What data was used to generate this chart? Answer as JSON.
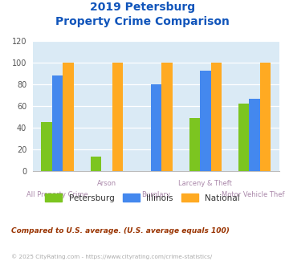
{
  "title_line1": "2019 Petersburg",
  "title_line2": "Property Crime Comparison",
  "categories": [
    "All Property Crime",
    "Arson",
    "Burglary",
    "Larceny & Theft",
    "Motor Vehicle Theft"
  ],
  "petersburg": [
    45,
    13,
    0,
    49,
    62
  ],
  "illinois": [
    88,
    0,
    80,
    93,
    67
  ],
  "national": [
    100,
    100,
    100,
    100,
    100
  ],
  "color_petersburg": "#7cc520",
  "color_illinois": "#4488ee",
  "color_national": "#ffaa22",
  "ylim": [
    0,
    120
  ],
  "yticks": [
    0,
    20,
    40,
    60,
    80,
    100,
    120
  ],
  "bg_color": "#daeaf5",
  "title_color": "#1155bb",
  "xlabel_color_upper": "#aa88aa",
  "xlabel_color_lower": "#aa88aa",
  "legend_text_color": "#333333",
  "footnote1": "Compared to U.S. average. (U.S. average equals 100)",
  "footnote2": "© 2025 CityRating.com - https://www.cityrating.com/crime-statistics/",
  "footnote1_color": "#993300",
  "footnote2_color": "#aaaaaa",
  "bar_width": 0.22
}
